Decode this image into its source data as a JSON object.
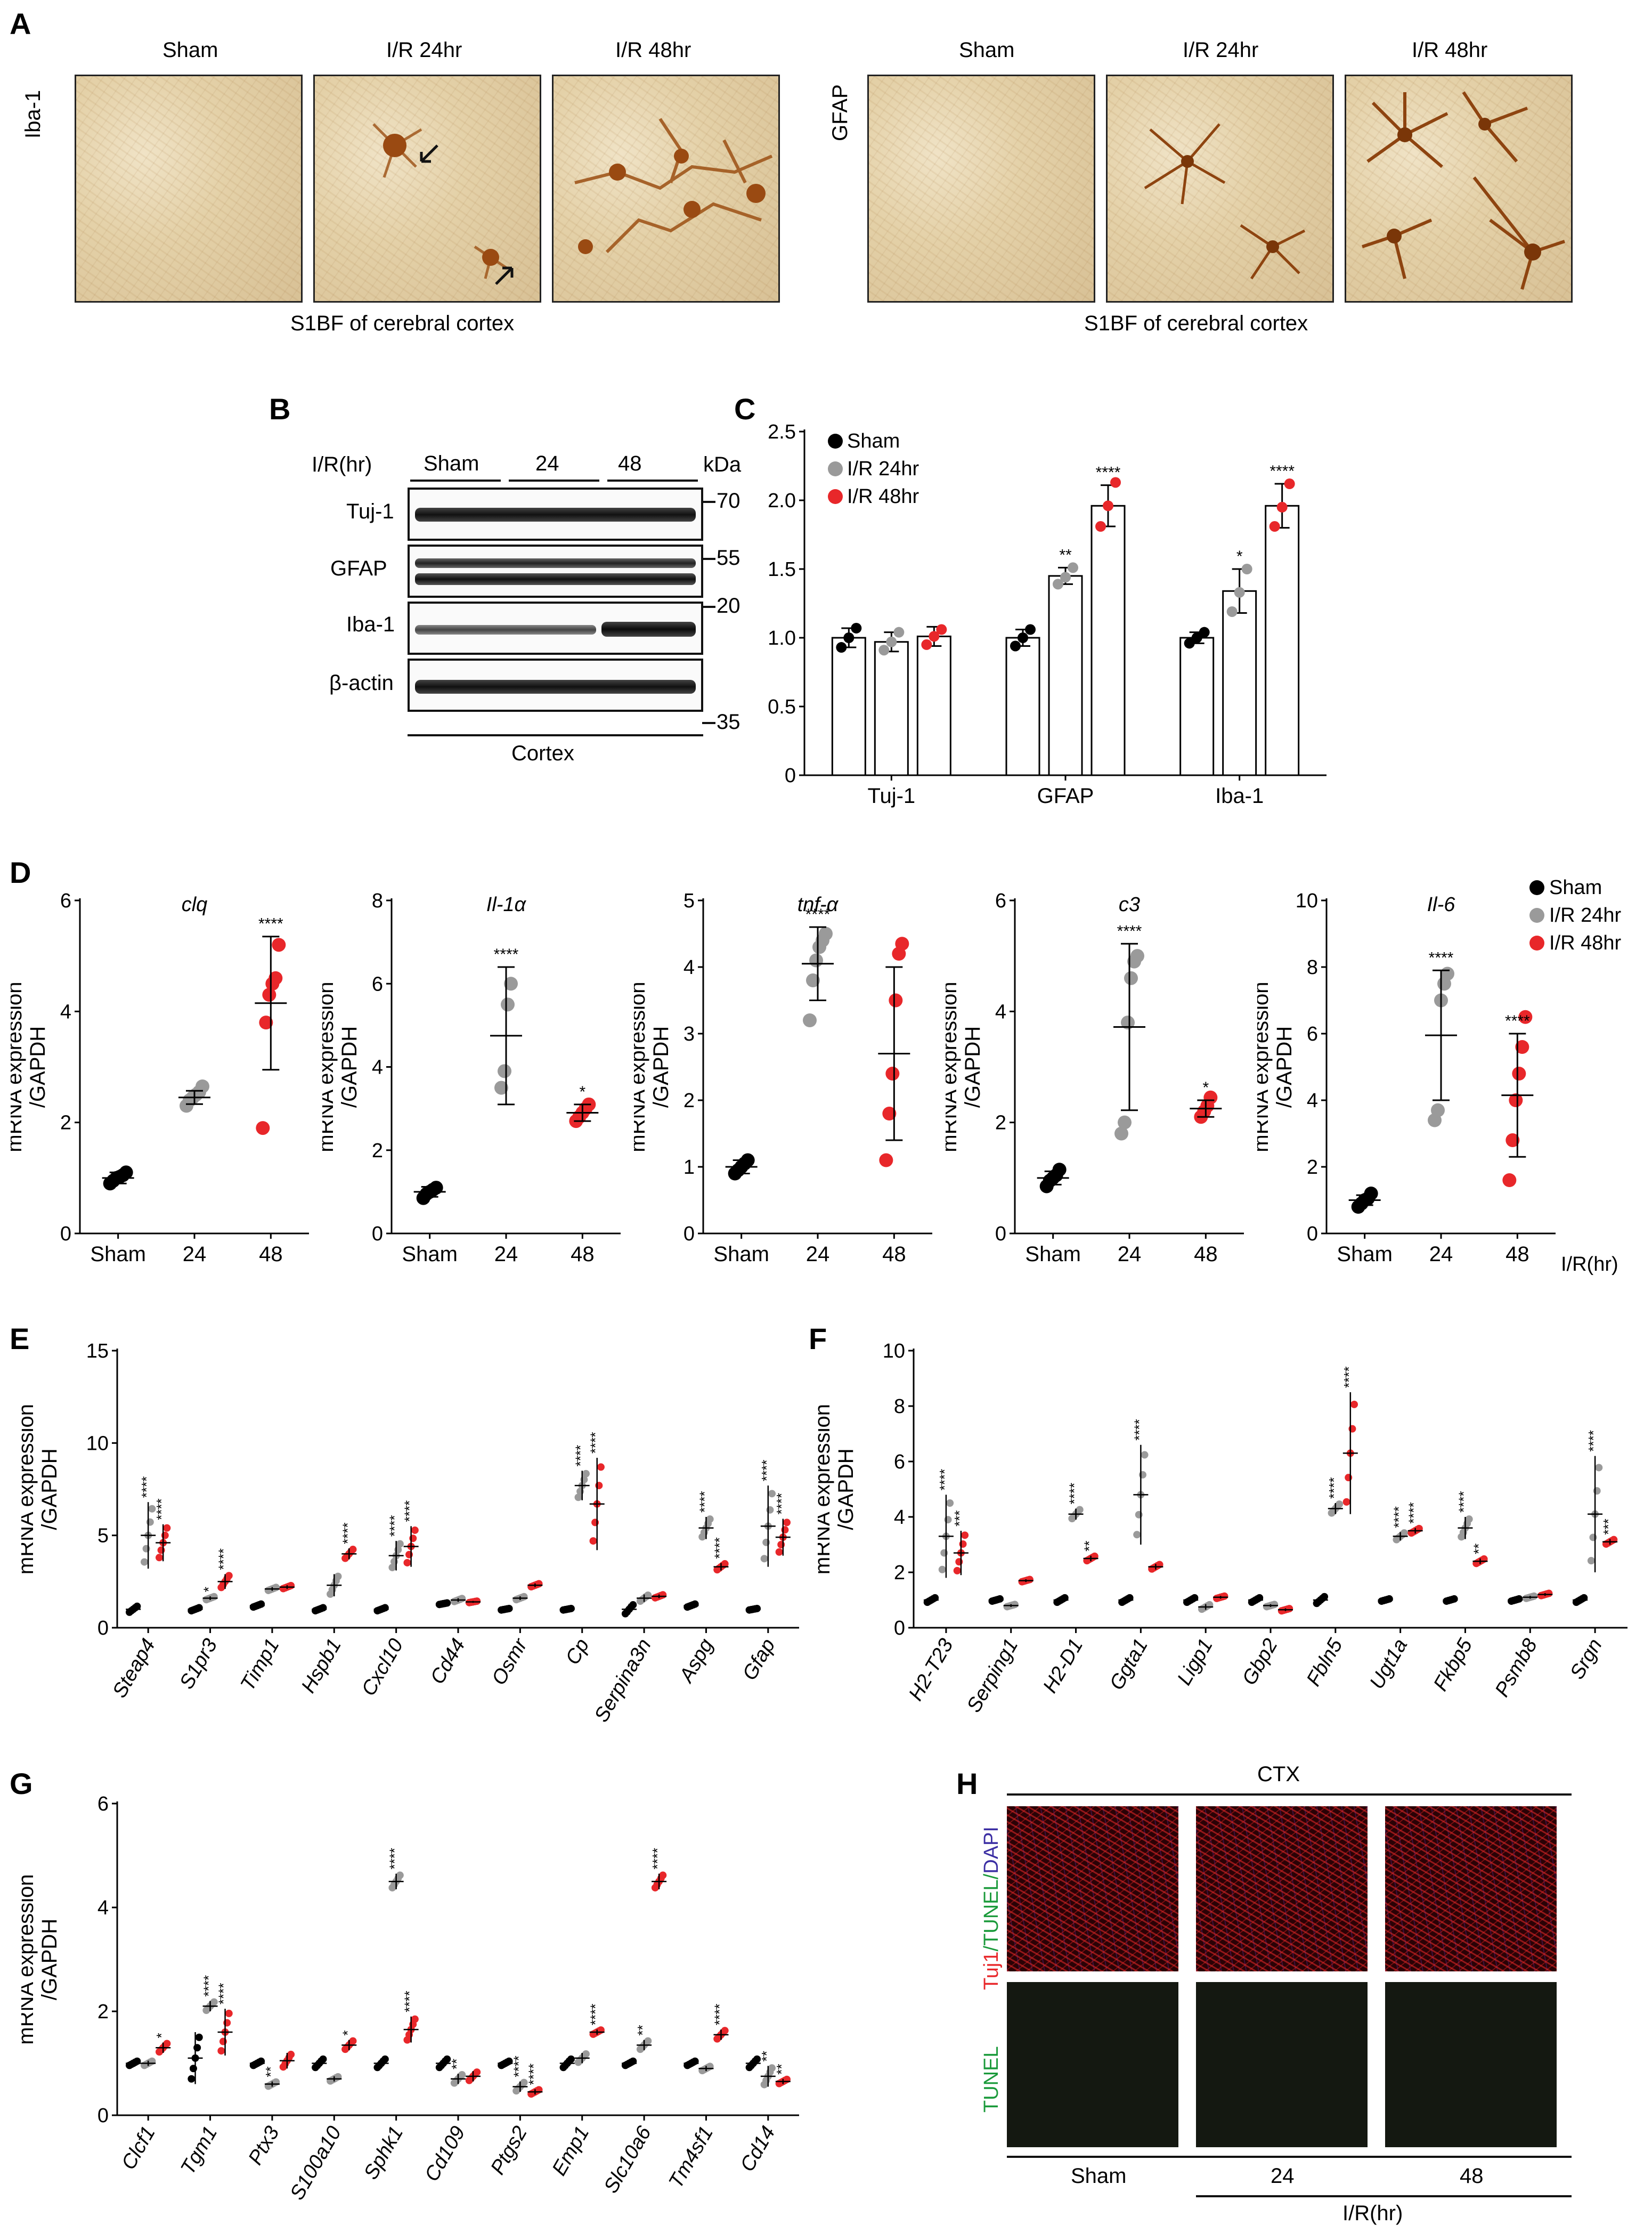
{
  "panels": {
    "A": {
      "letter": "A",
      "columns": [
        "Sham",
        "I/R 24hr",
        "I/R 48hr"
      ],
      "left_row_label": "Iba-1",
      "right_row_label": "GFAP",
      "left_caption": "S1BF of cerebral cortex",
      "right_caption": "S1BF of cerebral cortex",
      "colors": {
        "stain": "#a0571c",
        "background": "#e4d1a8"
      }
    },
    "B": {
      "letter": "B",
      "header_label": "I/R(hr)",
      "groups": [
        "Sham",
        "24",
        "48"
      ],
      "kda_label": "kDa",
      "rows": [
        "Tuj-1",
        "GFAP",
        "Iba-1",
        "β-actin"
      ],
      "markers": [
        "70",
        "55",
        "20",
        "35"
      ],
      "footer": "Cortex"
    },
    "C": {
      "letter": "C"
    },
    "D": {
      "letter": "D",
      "xaxis_note": "I/R(hr)",
      "legend": [
        "Sham",
        "I/R 24hr",
        "I/R 48hr"
      ]
    },
    "E": {
      "letter": "E"
    },
    "F": {
      "letter": "F"
    },
    "G": {
      "letter": "G"
    },
    "H": {
      "letter": "H",
      "region": "CTX",
      "top_row_label": {
        "part1": "Tuj1",
        "part2": "/TUNEL/",
        "part3": "DAPI"
      },
      "bottom_row_label": "TUNEL",
      "columns": [
        "Sham",
        "24",
        "48"
      ],
      "xlabel": "I/R(hr)"
    }
  },
  "colors": {
    "sham": "#000000",
    "ir24": "#9a9a9a",
    "ir48": "#e8272a"
  },
  "chart_data": [
    {
      "id": "C",
      "type": "bar",
      "categories": [
        "Tuj-1",
        "GFAP",
        "Iba-1"
      ],
      "series": [
        {
          "name": "Sham",
          "values": [
            1.0,
            1.0,
            1.0
          ],
          "errors": [
            0.07,
            0.06,
            0.04
          ],
          "points": [
            [
              0.93,
              1.0,
              1.07
            ],
            [
              0.94,
              1.0,
              1.06
            ],
            [
              0.96,
              1.0,
              1.04
            ]
          ]
        },
        {
          "name": "I/R 24hr",
          "values": [
            0.97,
            1.45,
            1.34
          ],
          "errors": [
            0.07,
            0.06,
            0.16
          ],
          "points": [
            [
              0.91,
              0.97,
              1.04
            ],
            [
              1.39,
              1.44,
              1.51
            ],
            [
              1.19,
              1.33,
              1.5
            ]
          ]
        },
        {
          "name": "I/R 48hr",
          "values": [
            1.01,
            1.96,
            1.96
          ],
          "errors": [
            0.07,
            0.15,
            0.16
          ],
          "points": [
            [
              0.95,
              1.01,
              1.06
            ],
            [
              1.81,
              1.96,
              2.13
            ],
            [
              1.81,
              1.95,
              2.12
            ]
          ]
        }
      ],
      "significance": [
        [
          "",
          "",
          ""
        ],
        [
          "",
          "**",
          "*"
        ],
        [
          "",
          "****",
          "****"
        ]
      ],
      "ylim": [
        0,
        2.5
      ],
      "yticks": [
        "0",
        "0.5",
        "1.0",
        "1.5",
        "2.0",
        "2.5"
      ],
      "legend": "top-left",
      "title": "",
      "xlabel": "",
      "ylabel": ""
    },
    {
      "id": "D1",
      "type": "scatter",
      "title": "clq",
      "categories": [
        "Sham",
        "24",
        "48"
      ],
      "ylabel": "mRNA expression /GAPDH",
      "ylim": [
        0,
        6
      ],
      "yticks": [
        "0",
        "2",
        "4",
        "6"
      ],
      "means": [
        1.0,
        2.45,
        4.15
      ],
      "sd": [
        0.1,
        0.12,
        1.2
      ],
      "points": [
        [
          0.9,
          0.95,
          1.0,
          1.02,
          1.05,
          1.1
        ],
        [
          2.3,
          2.4,
          2.45,
          2.5,
          2.55,
          2.65
        ],
        [
          1.9,
          3.8,
          4.3,
          4.5,
          4.6,
          5.2
        ]
      ],
      "significance": [
        "",
        "",
        "****"
      ]
    },
    {
      "id": "D2",
      "type": "scatter",
      "title": "Il-1α",
      "categories": [
        "Sham",
        "24",
        "48"
      ],
      "ylabel": "mRNA expression /GAPDH",
      "ylim": [
        0,
        8
      ],
      "yticks": [
        "0",
        "2",
        "4",
        "6",
        "8"
      ],
      "means": [
        1.0,
        4.75,
        2.9
      ],
      "sd": [
        0.12,
        1.65,
        0.2
      ],
      "points": [
        [
          0.85,
          0.95,
          1.0,
          1.05,
          1.1
        ],
        [
          3.5,
          3.9,
          5.5,
          6.0
        ],
        [
          2.7,
          2.8,
          2.9,
          3.0,
          3.1
        ]
      ],
      "significance": [
        "",
        "****",
        "*"
      ]
    },
    {
      "id": "D3",
      "type": "scatter",
      "title": "tnf-α",
      "categories": [
        "Sham",
        "24",
        "48"
      ],
      "ylabel": "mRNA expression /GAPDH",
      "ylim": [
        0,
        5
      ],
      "yticks": [
        "0",
        "1",
        "2",
        "3",
        "4",
        "5"
      ],
      "means": [
        1.0,
        4.05,
        2.7
      ],
      "sd": [
        0.1,
        0.55,
        1.3
      ],
      "points": [
        [
          0.9,
          0.95,
          1.0,
          1.05,
          1.1
        ],
        [
          3.2,
          3.8,
          4.1,
          4.3,
          4.4,
          4.5
        ],
        [
          1.1,
          1.8,
          2.4,
          3.5,
          4.2,
          4.35
        ]
      ],
      "significance": [
        "",
        "****",
        ""
      ]
    },
    {
      "id": "D4",
      "type": "scatter",
      "title": "c3",
      "categories": [
        "Sham",
        "24",
        "48"
      ],
      "ylabel": "mRNA expression /GAPDH",
      "ylim": [
        0,
        6
      ],
      "yticks": [
        "0",
        "2",
        "4",
        "6"
      ],
      "means": [
        1.0,
        3.72,
        2.25
      ],
      "sd": [
        0.12,
        1.5,
        0.15
      ],
      "points": [
        [
          0.85,
          0.95,
          1.0,
          1.05,
          1.15
        ],
        [
          1.8,
          2.0,
          3.8,
          4.6,
          4.9,
          5.0
        ],
        [
          2.1,
          2.2,
          2.3,
          2.45
        ]
      ],
      "significance": [
        "",
        "****",
        "*"
      ]
    },
    {
      "id": "D5",
      "type": "scatter",
      "title": "Il-6",
      "categories": [
        "Sham",
        "24",
        "48"
      ],
      "ylabel": "mRNA expression /GAPDH",
      "ylim": [
        0,
        10
      ],
      "yticks": [
        "0",
        "2",
        "4",
        "6",
        "8",
        "10"
      ],
      "means": [
        1.0,
        5.95,
        4.15
      ],
      "sd": [
        0.15,
        1.95,
        1.85
      ],
      "points": [
        [
          0.8,
          0.9,
          1.0,
          1.05,
          1.2
        ],
        [
          3.4,
          3.7,
          7.0,
          7.5,
          7.8
        ],
        [
          1.6,
          2.8,
          4.0,
          4.8,
          5.6,
          6.5
        ]
      ],
      "significance": [
        "",
        "****",
        "****"
      ]
    },
    {
      "id": "E",
      "type": "scatter",
      "categories": [
        "Steap4",
        "S1pr3",
        "Timp1",
        "Hspb1",
        "Cxcl10",
        "Cd44",
        "Osmr",
        "Cp",
        "Serpina3n",
        "Aspg",
        "Gfap"
      ],
      "ylabel": "mRNA expression /GAPDH",
      "ylim": [
        0,
        15
      ],
      "yticks": [
        "0",
        "5",
        "10",
        "15"
      ],
      "series": [
        {
          "name": "Sham",
          "values": [
            1.0,
            1.0,
            1.2,
            1.0,
            1.0,
            1.3,
            1.0,
            1.0,
            1.0,
            1.2,
            1.0
          ],
          "sd": [
            0.2,
            0.1,
            0.1,
            0.1,
            0.1,
            0.05,
            0.05,
            0.05,
            0.3,
            0.1,
            0.05
          ]
        },
        {
          "name": "I/R 24hr",
          "values": [
            5.0,
            1.6,
            2.1,
            2.3,
            3.9,
            1.5,
            1.6,
            7.7,
            1.6,
            5.4,
            5.5
          ],
          "sd": [
            1.8,
            0.1,
            0.1,
            0.6,
            0.8,
            0.1,
            0.1,
            0.8,
            0.2,
            0.6,
            2.2
          ]
        },
        {
          "name": "I/R 48hr",
          "values": [
            4.6,
            2.5,
            2.2,
            4.0,
            4.4,
            1.4,
            2.3,
            6.7,
            1.7,
            3.3,
            4.9
          ],
          "sd": [
            1.0,
            0.4,
            0.1,
            0.3,
            1.1,
            0.05,
            0.1,
            2.5,
            0.1,
            0.2,
            1.0
          ]
        }
      ],
      "significance": [
        [
          "****",
          "*",
          "",
          "",
          "****",
          "",
          "",
          "****",
          "",
          "****",
          "****"
        ],
        [
          "****",
          "****",
          "",
          "****",
          "****",
          "",
          "",
          "****",
          "",
          "****",
          "****"
        ]
      ]
    },
    {
      "id": "F",
      "type": "scatter",
      "categories": [
        "H2-T23",
        "Serping1",
        "H2-D1",
        "Ggta1",
        "Ligp1",
        "Gbp2",
        "Fbln5",
        "Ugt1a",
        "Fkbp5",
        "Psmb8",
        "Srgn"
      ],
      "ylabel": "mRNA expression /GAPDH",
      "ylim": [
        0,
        10
      ],
      "yticks": [
        "0",
        "2",
        "4",
        "6",
        "8",
        "10"
      ],
      "series": [
        {
          "name": "Sham",
          "values": [
            1.0,
            1.0,
            1.0,
            1.0,
            1.0,
            1.0,
            1.0,
            1.0,
            1.0,
            1.0,
            1.0
          ],
          "sd": [
            0.1,
            0.05,
            0.1,
            0.1,
            0.1,
            0.1,
            0.15,
            0.05,
            0.05,
            0.05,
            0.1
          ]
        },
        {
          "name": "I/R 24hr",
          "values": [
            3.3,
            0.8,
            4.1,
            4.8,
            0.75,
            0.8,
            4.3,
            3.3,
            3.6,
            1.1,
            4.1
          ],
          "sd": [
            1.5,
            0.05,
            0.2,
            1.8,
            0.1,
            0.05,
            0.2,
            0.15,
            0.4,
            0.05,
            2.1
          ]
        },
        {
          "name": "I/R 48hr",
          "values": [
            2.7,
            1.7,
            2.5,
            2.2,
            1.1,
            0.65,
            6.3,
            3.5,
            2.4,
            1.2,
            3.1
          ],
          "sd": [
            0.8,
            0.05,
            0.1,
            0.1,
            0.05,
            0.05,
            2.2,
            0.1,
            0.1,
            0.05,
            0.1
          ]
        }
      ],
      "significance": [
        [
          "****",
          "",
          "****",
          "****",
          "",
          "",
          "****",
          "****",
          "****",
          "",
          "****"
        ],
        [
          "***",
          "",
          "**",
          "",
          "",
          "",
          "****",
          "****",
          "**",
          "",
          "***"
        ]
      ]
    },
    {
      "id": "G",
      "type": "scatter",
      "categories": [
        "Clcf1",
        "Tgm1",
        "Ptx3",
        "S100a10",
        "Sphk1",
        "Cd109",
        "Ptgs2",
        "Emp1",
        "Slc10a6",
        "Tm4sf1",
        "Cd14"
      ],
      "ylabel": "mRNA expression /GAPDH",
      "ylim": [
        0,
        6
      ],
      "yticks": [
        "0",
        "2",
        "4",
        "6"
      ],
      "series": [
        {
          "name": "Sham",
          "values": [
            1.0,
            1.1,
            1.0,
            1.0,
            1.0,
            1.0,
            1.0,
            1.0,
            1.0,
            1.0,
            1.0
          ],
          "sd": [
            0.05,
            0.5,
            0.05,
            0.1,
            0.1,
            0.1,
            0.05,
            0.1,
            0.05,
            0.05,
            0.1
          ]
        },
        {
          "name": "I/R 24hr",
          "values": [
            1.0,
            2.1,
            0.6,
            0.7,
            4.5,
            0.7,
            0.55,
            1.1,
            1.35,
            0.9,
            0.75
          ],
          "sd": [
            0.05,
            0.1,
            0.05,
            0.05,
            0.15,
            0.1,
            0.1,
            0.1,
            0.1,
            0.05,
            0.2
          ]
        },
        {
          "name": "I/R 48hr",
          "values": [
            1.3,
            1.6,
            1.05,
            1.35,
            1.65,
            0.75,
            0.45,
            1.6,
            4.5,
            1.55,
            0.65
          ],
          "sd": [
            0.1,
            0.45,
            0.15,
            0.1,
            0.25,
            0.1,
            0.05,
            0.05,
            0.15,
            0.1,
            0.05
          ]
        }
      ],
      "significance": [
        [
          "",
          "****",
          "**",
          "",
          "****",
          "**",
          "****",
          "",
          "**",
          "",
          "**"
        ],
        [
          "*",
          "****",
          "",
          "*",
          "****",
          "",
          "****",
          "****",
          "****",
          "****",
          "**"
        ]
      ]
    }
  ]
}
